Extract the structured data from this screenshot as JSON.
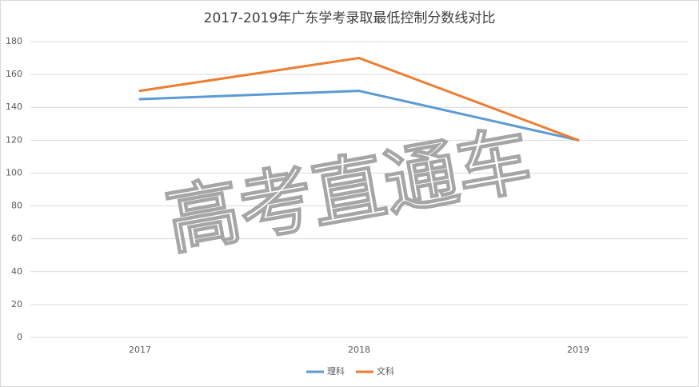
{
  "chart_data": {
    "type": "line",
    "title": "2017-2019年广东学考录取最低控制分数线对比",
    "categories": [
      "2017",
      "2018",
      "2019"
    ],
    "series": [
      {
        "name": "理科",
        "color": "#5b9bd5",
        "values": [
          145,
          150,
          120
        ]
      },
      {
        "name": "文科",
        "color": "#ed7d31",
        "values": [
          150,
          170,
          120
        ]
      }
    ],
    "ylim": [
      0,
      180
    ],
    "yticks": [
      0,
      20,
      40,
      60,
      80,
      100,
      120,
      140,
      160,
      180
    ],
    "grid": true,
    "legend": "bottom",
    "watermark": "高考直通车"
  }
}
